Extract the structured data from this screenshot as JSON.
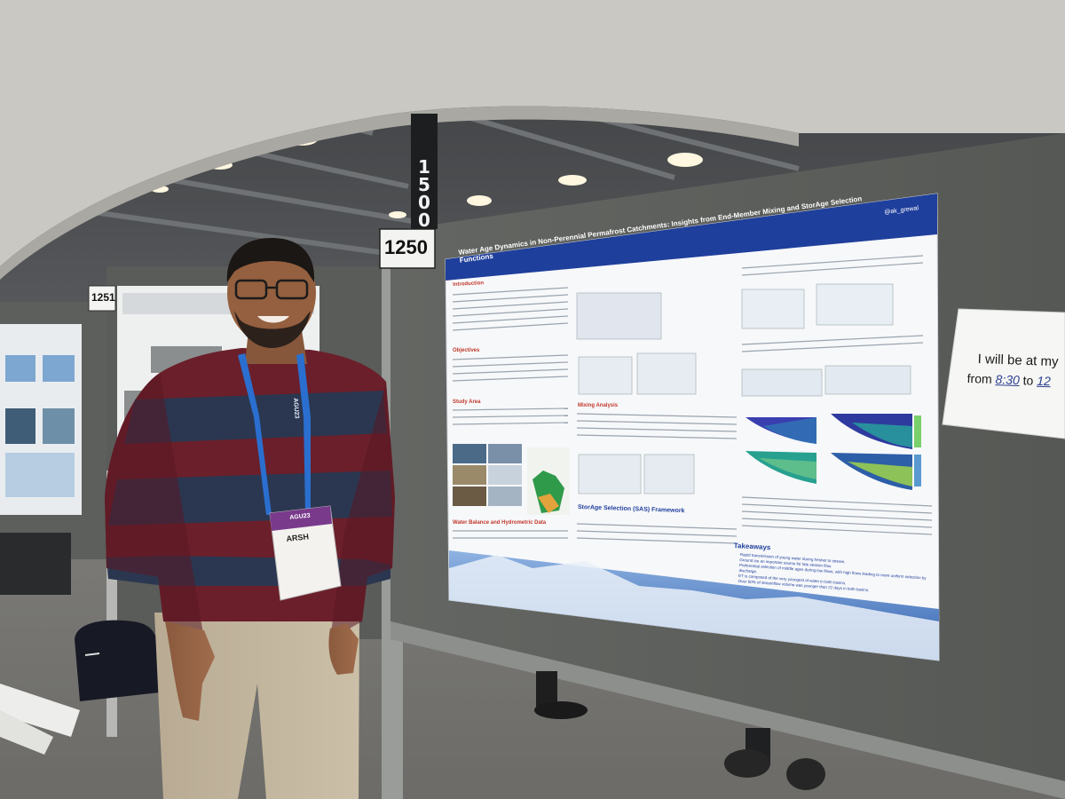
{
  "signs": {
    "aisle": "1500",
    "board_main": "1250",
    "board_left": "1251"
  },
  "poster": {
    "title": "Water Age Dynamics in Non-Perennial Permafrost Catchments: Insights from End-Member Mixing and StorAge Selection Functions",
    "handle": "@ak_grewal",
    "sections": [
      "Introduction",
      "Objectives",
      "Study Area",
      "Water Balance and Hydrometric Data",
      "Mixing Analysis",
      "StorAge Selection (SAS) Framework",
      "Takeaways"
    ],
    "takeaways": [
      "Rapid transmission of young water during freshet to stream.",
      "Ground ice an important source for late season flow.",
      "Preferential selection of middle ages during low flows, with high flows leading to more uniform selection by discharge.",
      "ET is composed of the very youngest of water in both basins.",
      "Over 60% of streamflow volume was younger than 22 days in both basins."
    ]
  },
  "badge": {
    "conference": "AGU23",
    "name": "ARSH"
  },
  "lanyard": "AGU23",
  "note": {
    "line1": "I will be at my",
    "line2_prefix": "from",
    "time_start": "8:30",
    "line2_mid": "to",
    "time_end": "12"
  },
  "colors": {
    "poster_header": "#1f3f9c",
    "section_heading": "#c0392b",
    "board_fabric": "#5c5e5b",
    "sweater_maroon": "#6b1f2a",
    "sweater_navy": "#2b3750",
    "badge_purple": "#7a3a8c"
  }
}
